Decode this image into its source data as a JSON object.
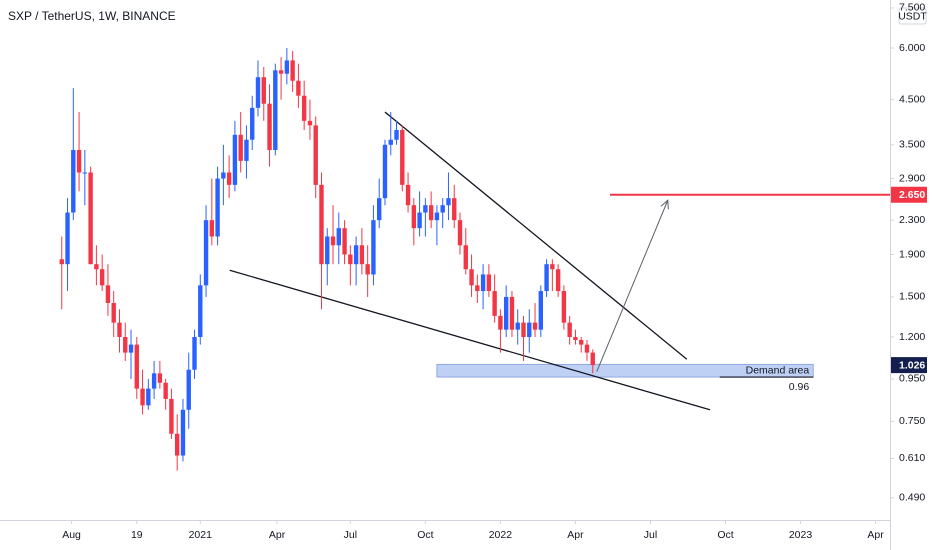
{
  "chart_data": {
    "type": "candlestick",
    "title": "SXP / TetherUS, 1W, BINANCE",
    "unit": "USDT",
    "up_color": "#2962ff",
    "down_color": "#f23645",
    "log_scale": true,
    "grid": false,
    "ylim": [
      0.433,
      7.84
    ],
    "yticks": [
      {
        "value": 7.5,
        "label": "7.500"
      },
      {
        "value": 6,
        "label": "6.000"
      },
      {
        "value": 4.5,
        "label": "4.500"
      },
      {
        "value": 3.5,
        "label": "3.500"
      },
      {
        "value": 2.9,
        "label": "2.900"
      },
      {
        "value": 2.3,
        "label": "2.300"
      },
      {
        "value": 1.9,
        "label": "1.900"
      },
      {
        "value": 1.5,
        "label": "1.500"
      },
      {
        "value": 1.2,
        "label": "1.200"
      },
      {
        "value": 0.95,
        "label": "0.950"
      },
      {
        "value": 0.75,
        "label": "0.750"
      },
      {
        "value": 0.61,
        "label": "0.610"
      },
      {
        "value": 0.49,
        "label": "0.490"
      }
    ],
    "xlim": [
      -10.7,
      143.5
    ],
    "xticks": [
      {
        "value": 1.7,
        "label": "Aug"
      },
      {
        "value": 13,
        "label": "19"
      },
      {
        "value": 24,
        "label": "2021"
      },
      {
        "value": 37.3,
        "label": "Apr"
      },
      {
        "value": 50,
        "label": "Jul"
      },
      {
        "value": 63,
        "label": "Oct"
      },
      {
        "value": 76,
        "label": "2022"
      },
      {
        "value": 89,
        "label": "Apr"
      },
      {
        "value": 102,
        "label": "Jul"
      },
      {
        "value": 115,
        "label": "Oct"
      },
      {
        "value": 128,
        "label": "2023"
      },
      {
        "value": 141,
        "label": "Apr"
      }
    ],
    "candles": [
      [
        1.85,
        2.1,
        1.4,
        1.8
      ],
      [
        1.8,
        2.6,
        1.55,
        2.4
      ],
      [
        2.4,
        4.8,
        2.3,
        3.4
      ],
      [
        3.4,
        4.2,
        2.7,
        3.0
      ],
      [
        3.0,
        3.4,
        2.5,
        3.0
      ],
      [
        3.0,
        3.1,
        1.8,
        1.8
      ],
      [
        1.8,
        2.0,
        1.6,
        1.75
      ],
      [
        1.75,
        1.9,
        1.55,
        1.6
      ],
      [
        1.6,
        1.8,
        1.35,
        1.45
      ],
      [
        1.45,
        1.55,
        1.2,
        1.3
      ],
      [
        1.3,
        1.4,
        1.1,
        1.2
      ],
      [
        1.2,
        1.3,
        1.05,
        1.1
      ],
      [
        1.1,
        1.25,
        0.95,
        1.15
      ],
      [
        1.15,
        1.2,
        0.85,
        0.9
      ],
      [
        0.9,
        1.0,
        0.78,
        0.82
      ],
      [
        0.82,
        0.95,
        0.8,
        0.9
      ],
      [
        0.9,
        1.05,
        0.85,
        0.98
      ],
      [
        0.98,
        1.05,
        0.9,
        0.93
      ],
      [
        0.93,
        0.95,
        0.8,
        0.85
      ],
      [
        0.85,
        0.9,
        0.68,
        0.7
      ],
      [
        0.7,
        0.78,
        0.57,
        0.62
      ],
      [
        0.62,
        0.85,
        0.6,
        0.8
      ],
      [
        0.8,
        1.1,
        0.72,
        1.0
      ],
      [
        1.0,
        1.25,
        0.95,
        1.2
      ],
      [
        1.2,
        1.7,
        1.15,
        1.6
      ],
      [
        1.6,
        2.5,
        1.5,
        2.3
      ],
      [
        2.3,
        2.9,
        2.0,
        2.1
      ],
      [
        2.1,
        3.1,
        2.0,
        2.9
      ],
      [
        2.9,
        3.5,
        2.5,
        3.0
      ],
      [
        3.0,
        3.3,
        2.6,
        2.8
      ],
      [
        2.8,
        4.0,
        2.7,
        3.7
      ],
      [
        3.7,
        4.2,
        3.0,
        3.2
      ],
      [
        3.2,
        3.9,
        2.9,
        3.6
      ],
      [
        3.6,
        4.6,
        3.4,
        4.3
      ],
      [
        4.3,
        5.6,
        4.1,
        5.1
      ],
      [
        5.1,
        5.4,
        4.0,
        4.4
      ],
      [
        4.4,
        4.9,
        3.1,
        3.4
      ],
      [
        3.4,
        5.5,
        3.3,
        5.3
      ],
      [
        5.3,
        5.7,
        4.5,
        5.2
      ],
      [
        5.2,
        6.0,
        4.9,
        5.6
      ],
      [
        5.6,
        5.9,
        4.7,
        5.0
      ],
      [
        5.0,
        5.5,
        4.3,
        4.6
      ],
      [
        4.6,
        5.0,
        3.8,
        4.0
      ],
      [
        4.0,
        4.5,
        3.6,
        3.9
      ],
      [
        3.9,
        4.1,
        2.6,
        2.8
      ],
      [
        2.8,
        3.0,
        1.4,
        1.8
      ],
      [
        1.8,
        2.2,
        1.6,
        2.1
      ],
      [
        2.1,
        2.5,
        1.8,
        2.0
      ],
      [
        2.0,
        2.4,
        1.8,
        2.2
      ],
      [
        2.2,
        2.3,
        1.8,
        1.9
      ],
      [
        1.9,
        2.0,
        1.6,
        1.8
      ],
      [
        1.8,
        2.1,
        1.6,
        2.0
      ],
      [
        2.0,
        2.2,
        1.7,
        1.8
      ],
      [
        1.8,
        2.0,
        1.5,
        1.7
      ],
      [
        1.7,
        2.5,
        1.6,
        2.3
      ],
      [
        2.3,
        2.9,
        2.2,
        2.6
      ],
      [
        2.6,
        3.6,
        2.5,
        3.5
      ],
      [
        3.5,
        4.2,
        3.3,
        3.6
      ],
      [
        3.6,
        4.0,
        3.5,
        3.8
      ],
      [
        3.8,
        3.9,
        2.7,
        2.8
      ],
      [
        2.8,
        3.0,
        2.4,
        2.5
      ],
      [
        2.5,
        2.6,
        2.0,
        2.2
      ],
      [
        2.2,
        2.7,
        2.1,
        2.4
      ],
      [
        2.4,
        2.6,
        2.1,
        2.5
      ],
      [
        2.5,
        2.7,
        2.2,
        2.3
      ],
      [
        2.3,
        2.5,
        2.0,
        2.4
      ],
      [
        2.4,
        2.6,
        2.2,
        2.5
      ],
      [
        2.5,
        3.0,
        2.3,
        2.6
      ],
      [
        2.6,
        2.8,
        2.2,
        2.3
      ],
      [
        2.3,
        2.4,
        1.9,
        2.0
      ],
      [
        2.0,
        2.2,
        1.7,
        1.75
      ],
      [
        1.75,
        1.9,
        1.5,
        1.6
      ],
      [
        1.6,
        1.7,
        1.45,
        1.55
      ],
      [
        1.55,
        1.8,
        1.4,
        1.7
      ],
      [
        1.7,
        1.8,
        1.5,
        1.55
      ],
      [
        1.55,
        1.7,
        1.3,
        1.35
      ],
      [
        1.35,
        1.4,
        1.1,
        1.25
      ],
      [
        1.25,
        1.6,
        1.2,
        1.5
      ],
      [
        1.5,
        1.55,
        1.2,
        1.25
      ],
      [
        1.25,
        1.4,
        1.15,
        1.3
      ],
      [
        1.3,
        1.35,
        1.05,
        1.2
      ],
      [
        1.2,
        1.4,
        1.1,
        1.3
      ],
      [
        1.3,
        1.45,
        1.2,
        1.25
      ],
      [
        1.25,
        1.6,
        1.2,
        1.55
      ],
      [
        1.55,
        1.85,
        1.5,
        1.8
      ],
      [
        1.8,
        1.85,
        1.55,
        1.75
      ],
      [
        1.75,
        1.8,
        1.5,
        1.55
      ],
      [
        1.55,
        1.6,
        1.25,
        1.3
      ],
      [
        1.3,
        1.35,
        1.15,
        1.2
      ],
      [
        1.2,
        1.25,
        1.15,
        1.18
      ],
      [
        1.18,
        1.2,
        1.1,
        1.15
      ],
      [
        1.15,
        1.18,
        1.05,
        1.1
      ],
      [
        1.1,
        1.12,
        0.98,
        1.026
      ]
    ],
    "last_price": {
      "value": 1.026,
      "label": "1.026",
      "color": "#131f4f"
    },
    "level": {
      "value": 2.65,
      "label": "2.650",
      "color": "#f23645",
      "x_from": 95
    },
    "demand": {
      "label": "Demand area",
      "low": 0.96,
      "high": 1.03,
      "x_from": 65,
      "x_to": 130.2,
      "line_from": 114,
      "color": "#b3c8f2"
    },
    "trendlines": [
      [
        [
          56,
          4.2
        ],
        [
          108.3,
          1.06
        ]
      ],
      [
        [
          29.1,
          1.74
        ],
        [
          112.3,
          0.8
        ]
      ]
    ],
    "arrow": [
      [
        92.7,
        0.99
      ],
      [
        105,
        2.57
      ]
    ]
  }
}
